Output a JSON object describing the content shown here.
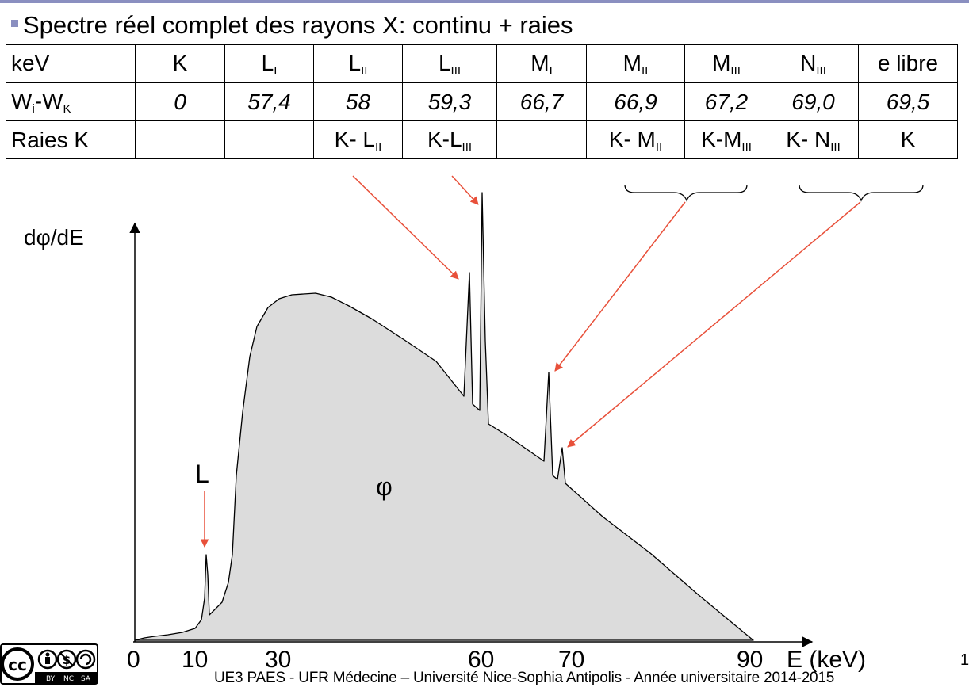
{
  "title": "Spectre réel complet des rayons X: continu + raies",
  "table": {
    "header": [
      {
        "main": "keV",
        "sub": ""
      },
      {
        "main": "K",
        "sub": ""
      },
      {
        "main": "L",
        "sub": "I"
      },
      {
        "main": "L",
        "sub": "II"
      },
      {
        "main": "L",
        "sub": "III"
      },
      {
        "main": "M",
        "sub": "I"
      },
      {
        "main": "M",
        "sub": "II"
      },
      {
        "main": "M",
        "sub": "III"
      },
      {
        "main": "N",
        "sub": "III"
      },
      {
        "main": "e libre",
        "sub": ""
      }
    ],
    "row_w": {
      "label_main": "W",
      "label_sub1": "i",
      "label_mid": "-W",
      "label_sub2": "K",
      "values": [
        "0",
        "57,4",
        "58",
        "59,3",
        "66,7",
        "66,9",
        "67,2",
        "69,0",
        "69,5"
      ]
    },
    "row_raies": {
      "label": "Raies K",
      "cells": [
        {
          "main": "",
          "sub": ""
        },
        {
          "main": "",
          "sub": ""
        },
        {
          "main": "K- L",
          "sub": "II"
        },
        {
          "main": "K-L",
          "sub": "III"
        },
        {
          "main": "",
          "sub": ""
        },
        {
          "main": "K- M",
          "sub": "II"
        },
        {
          "main": "K-M",
          "sub": "III"
        },
        {
          "main": "K- N",
          "sub": "III"
        },
        {
          "main": "K",
          "sub": ""
        }
      ]
    }
  },
  "diagram": {
    "y_axis_label": "dφ/dE",
    "x_axis_label": "E (keV)",
    "x_ticks": [
      "0",
      "10",
      "30",
      "60",
      "70",
      "90"
    ],
    "peak_label_L": "L",
    "area_label": "φ",
    "fill_color": "#dcdcdc",
    "arrow_color": "#e8503a"
  },
  "footer": {
    "text": "UE3 PAES - UFR Médecine – Université Nice-Sophia Antipolis - Année universitaire 2014-2015",
    "page_number": "1"
  },
  "license_icon": "cc-by-nc-sa-icon"
}
